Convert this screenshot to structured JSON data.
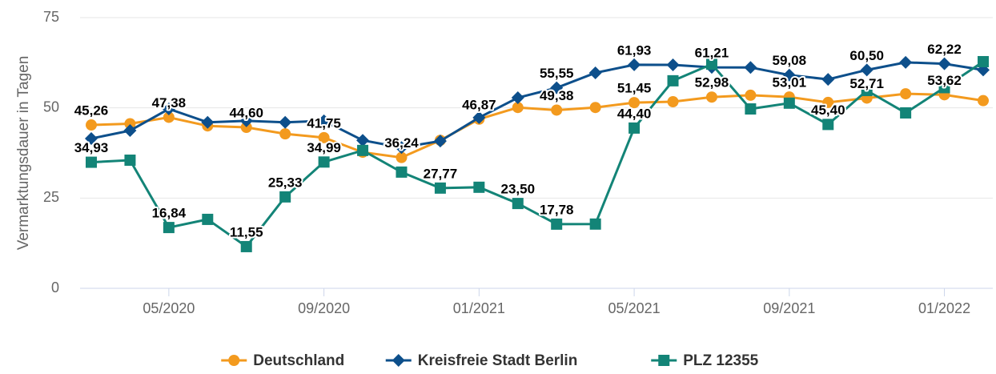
{
  "chart_data": {
    "type": "line",
    "y_label": "Vermarktungsdauer in Tagen",
    "categories": [
      null,
      null,
      "05/2020",
      null,
      null,
      null,
      "09/2020",
      null,
      null,
      null,
      "01/2021",
      null,
      null,
      null,
      "05/2021",
      null,
      null,
      null,
      "09/2021",
      null,
      null,
      null,
      "01/2022",
      null
    ],
    "ylim": [
      0,
      75
    ],
    "yticks": [
      0,
      25,
      50,
      75
    ],
    "grid": true,
    "legend": "bottom",
    "series": [
      {
        "name": "Deutschland",
        "color": "#f39a1e",
        "marker": "circle",
        "values": [
          45.26,
          45.6,
          47.38,
          45.0,
          44.6,
          42.8,
          41.75,
          37.7,
          36.24,
          41.0,
          46.87,
          50.1,
          49.38,
          50.1,
          51.45,
          51.7,
          52.98,
          53.5,
          53.01,
          51.5,
          52.71,
          53.9,
          53.62,
          52.0
        ],
        "value_labels": [
          "45,26",
          null,
          "47,38",
          null,
          "44,60",
          null,
          "41,75",
          null,
          "36,24",
          null,
          "46,87",
          null,
          "49,38",
          null,
          "51,45",
          null,
          "52,98",
          null,
          "53,01",
          null,
          "52,71",
          null,
          "53,62",
          null
        ]
      },
      {
        "name": "Kreisfreie Stadt Berlin",
        "color": "#0d4f8b",
        "marker": "diamond",
        "values": [
          41.5,
          43.7,
          49.7,
          46.0,
          46.4,
          46.0,
          46.4,
          41.0,
          39.0,
          40.8,
          47.3,
          52.8,
          55.55,
          59.7,
          61.93,
          61.9,
          61.21,
          61.2,
          59.08,
          57.9,
          60.5,
          62.6,
          62.22,
          60.5
        ],
        "value_labels": [
          null,
          null,
          null,
          null,
          null,
          null,
          null,
          null,
          null,
          null,
          null,
          null,
          "55,55",
          null,
          "61,93",
          null,
          "61,21",
          null,
          "59,08",
          null,
          "60,50",
          null,
          "62,22",
          null
        ]
      },
      {
        "name": "PLZ 12355",
        "color": "#138477",
        "marker": "square",
        "values": [
          34.93,
          35.5,
          16.84,
          19.1,
          11.55,
          25.33,
          34.99,
          38.2,
          32.2,
          27.77,
          28.0,
          23.5,
          17.78,
          17.8,
          44.4,
          57.5,
          62.1,
          49.7,
          51.3,
          45.4,
          54.8,
          48.6,
          55.6,
          62.8
        ],
        "value_labels": [
          "34,93",
          null,
          "16,84",
          null,
          "11,55",
          "25,33",
          "34,99",
          null,
          null,
          "27,77",
          null,
          "23,50",
          "17,78",
          null,
          "44,40",
          null,
          null,
          null,
          null,
          "45,40",
          null,
          null,
          null,
          null
        ]
      }
    ]
  }
}
